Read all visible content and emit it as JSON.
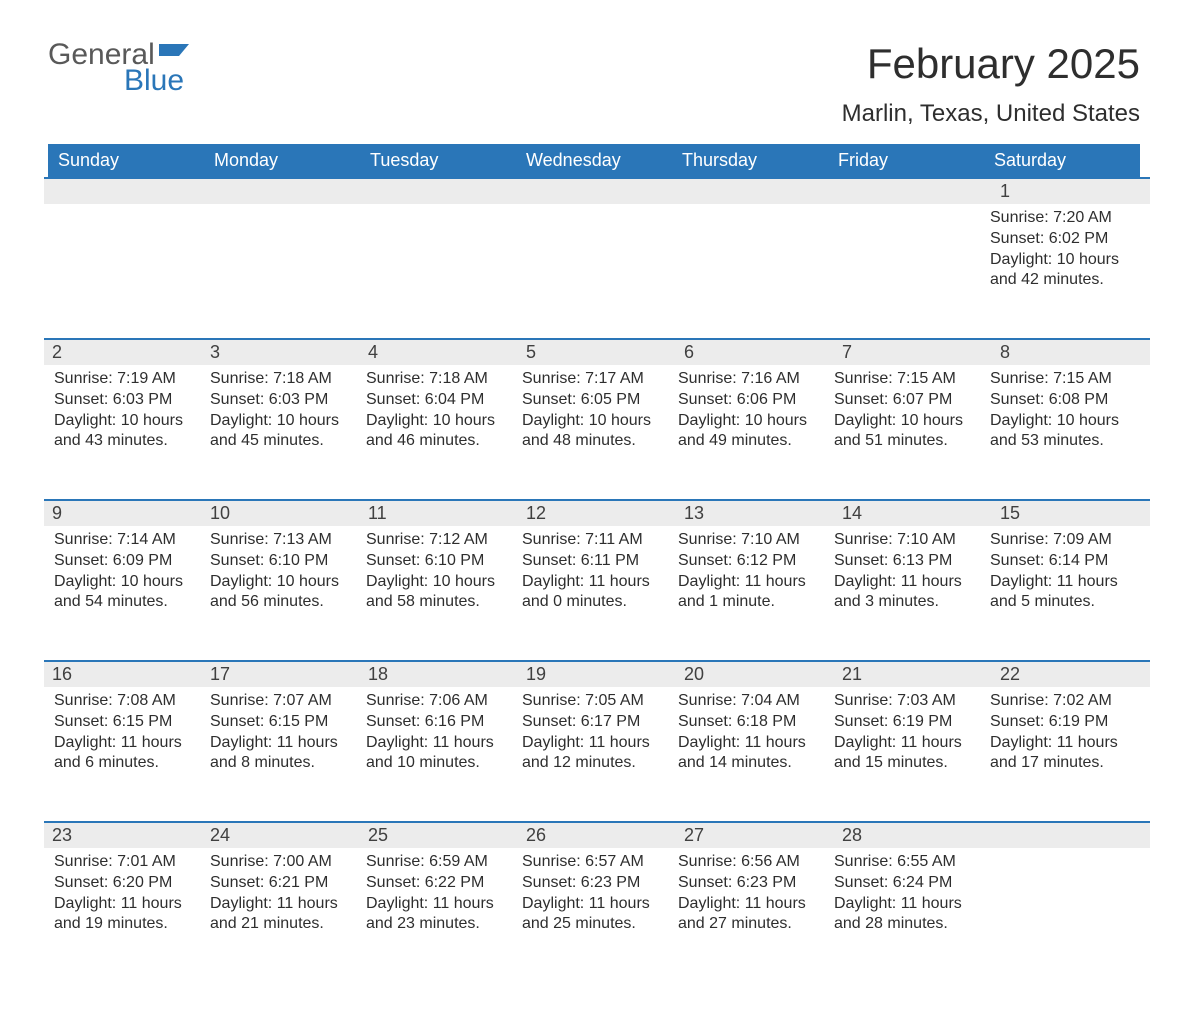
{
  "logo": {
    "line1": "General",
    "line2": "Blue"
  },
  "title": "February 2025",
  "location": "Marlin, Texas, United States",
  "colors": {
    "header_bg": "#2a76b8",
    "header_text": "#ffffff",
    "daynum_bg": "#ececec",
    "border_top": "#2a76b8",
    "body_text": "#2e2e2e",
    "logo_gray": "#595959",
    "logo_blue": "#2a76b8",
    "background": "#ffffff"
  },
  "day_labels": [
    "Sunday",
    "Monday",
    "Tuesday",
    "Wednesday",
    "Thursday",
    "Friday",
    "Saturday"
  ],
  "weeks": [
    [
      null,
      null,
      null,
      null,
      null,
      null,
      {
        "d": "1",
        "sunrise": "7:20 AM",
        "sunset": "6:02 PM",
        "daylight": "10 hours and 42 minutes."
      }
    ],
    [
      {
        "d": "2",
        "sunrise": "7:19 AM",
        "sunset": "6:03 PM",
        "daylight": "10 hours and 43 minutes."
      },
      {
        "d": "3",
        "sunrise": "7:18 AM",
        "sunset": "6:03 PM",
        "daylight": "10 hours and 45 minutes."
      },
      {
        "d": "4",
        "sunrise": "7:18 AM",
        "sunset": "6:04 PM",
        "daylight": "10 hours and 46 minutes."
      },
      {
        "d": "5",
        "sunrise": "7:17 AM",
        "sunset": "6:05 PM",
        "daylight": "10 hours and 48 minutes."
      },
      {
        "d": "6",
        "sunrise": "7:16 AM",
        "sunset": "6:06 PM",
        "daylight": "10 hours and 49 minutes."
      },
      {
        "d": "7",
        "sunrise": "7:15 AM",
        "sunset": "6:07 PM",
        "daylight": "10 hours and 51 minutes."
      },
      {
        "d": "8",
        "sunrise": "7:15 AM",
        "sunset": "6:08 PM",
        "daylight": "10 hours and 53 minutes."
      }
    ],
    [
      {
        "d": "9",
        "sunrise": "7:14 AM",
        "sunset": "6:09 PM",
        "daylight": "10 hours and 54 minutes."
      },
      {
        "d": "10",
        "sunrise": "7:13 AM",
        "sunset": "6:10 PM",
        "daylight": "10 hours and 56 minutes."
      },
      {
        "d": "11",
        "sunrise": "7:12 AM",
        "sunset": "6:10 PM",
        "daylight": "10 hours and 58 minutes."
      },
      {
        "d": "12",
        "sunrise": "7:11 AM",
        "sunset": "6:11 PM",
        "daylight": "11 hours and 0 minutes."
      },
      {
        "d": "13",
        "sunrise": "7:10 AM",
        "sunset": "6:12 PM",
        "daylight": "11 hours and 1 minute."
      },
      {
        "d": "14",
        "sunrise": "7:10 AM",
        "sunset": "6:13 PM",
        "daylight": "11 hours and 3 minutes."
      },
      {
        "d": "15",
        "sunrise": "7:09 AM",
        "sunset": "6:14 PM",
        "daylight": "11 hours and 5 minutes."
      }
    ],
    [
      {
        "d": "16",
        "sunrise": "7:08 AM",
        "sunset": "6:15 PM",
        "daylight": "11 hours and 6 minutes."
      },
      {
        "d": "17",
        "sunrise": "7:07 AM",
        "sunset": "6:15 PM",
        "daylight": "11 hours and 8 minutes."
      },
      {
        "d": "18",
        "sunrise": "7:06 AM",
        "sunset": "6:16 PM",
        "daylight": "11 hours and 10 minutes."
      },
      {
        "d": "19",
        "sunrise": "7:05 AM",
        "sunset": "6:17 PM",
        "daylight": "11 hours and 12 minutes."
      },
      {
        "d": "20",
        "sunrise": "7:04 AM",
        "sunset": "6:18 PM",
        "daylight": "11 hours and 14 minutes."
      },
      {
        "d": "21",
        "sunrise": "7:03 AM",
        "sunset": "6:19 PM",
        "daylight": "11 hours and 15 minutes."
      },
      {
        "d": "22",
        "sunrise": "7:02 AM",
        "sunset": "6:19 PM",
        "daylight": "11 hours and 17 minutes."
      }
    ],
    [
      {
        "d": "23",
        "sunrise": "7:01 AM",
        "sunset": "6:20 PM",
        "daylight": "11 hours and 19 minutes."
      },
      {
        "d": "24",
        "sunrise": "7:00 AM",
        "sunset": "6:21 PM",
        "daylight": "11 hours and 21 minutes."
      },
      {
        "d": "25",
        "sunrise": "6:59 AM",
        "sunset": "6:22 PM",
        "daylight": "11 hours and 23 minutes."
      },
      {
        "d": "26",
        "sunrise": "6:57 AM",
        "sunset": "6:23 PM",
        "daylight": "11 hours and 25 minutes."
      },
      {
        "d": "27",
        "sunrise": "6:56 AM",
        "sunset": "6:23 PM",
        "daylight": "11 hours and 27 minutes."
      },
      {
        "d": "28",
        "sunrise": "6:55 AM",
        "sunset": "6:24 PM",
        "daylight": "11 hours and 28 minutes."
      },
      null
    ]
  ],
  "labels": {
    "sunrise_prefix": "Sunrise: ",
    "sunset_prefix": "Sunset: ",
    "daylight_prefix": "Daylight: "
  }
}
